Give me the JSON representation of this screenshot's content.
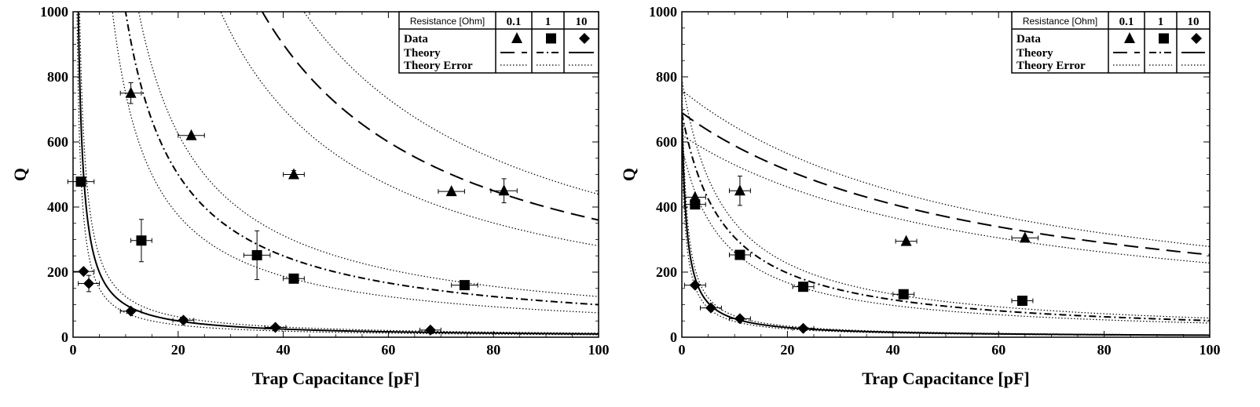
{
  "chart_data": [
    {
      "type": "scatter",
      "title": "",
      "xlabel": "Trap Capacitance [pF]",
      "ylabel": "Q",
      "xlim": [
        0,
        100
      ],
      "ylim": [
        0,
        1000
      ],
      "xticks": [
        0,
        20,
        40,
        60,
        80,
        100
      ],
      "yticks": [
        0,
        200,
        400,
        600,
        800,
        1000
      ],
      "grid": false,
      "legend": {
        "position": "top-right",
        "header": "Resistance [Ohm]",
        "columns": [
          "0.1",
          "1",
          "10"
        ],
        "rows": [
          "Data",
          "Theory",
          "Theory Error"
        ]
      },
      "series": [
        {
          "name": "0.1",
          "marker": "triangle",
          "line": "dashed",
          "theory_k": 36000,
          "theory_err": 0.22,
          "points": [
            {
              "x": 11,
              "y": 750,
              "xerr": 2,
              "yerr": 32
            },
            {
              "x": 22.5,
              "y": 620,
              "xerr": 2.5,
              "yerr": 0
            },
            {
              "x": 42,
              "y": 500,
              "xerr": 2,
              "yerr": 12
            },
            {
              "x": 72,
              "y": 448,
              "xerr": 2.5,
              "yerr": 0
            },
            {
              "x": 82,
              "y": 450,
              "xerr": 2.5,
              "yerr": 37
            }
          ]
        },
        {
          "name": "1",
          "marker": "square",
          "line": "dashdot",
          "theory_k": 10000,
          "theory_err": 0.25,
          "points": [
            {
              "x": 1.5,
              "y": 478,
              "xerr": 2.5,
              "yerr": 0
            },
            {
              "x": 13,
              "y": 297,
              "xerr": 2,
              "yerr": 65
            },
            {
              "x": 35,
              "y": 252,
              "xerr": 2.5,
              "yerr": 75
            },
            {
              "x": 42,
              "y": 180,
              "xerr": 2,
              "yerr": 0
            },
            {
              "x": 74.5,
              "y": 160,
              "xerr": 2.5,
              "yerr": 0
            }
          ]
        },
        {
          "name": "10",
          "marker": "diamond",
          "line": "solid",
          "theory_k": 1000,
          "theory_err": 0.25,
          "points": [
            {
              "x": 2,
              "y": 202,
              "xerr": 2,
              "yerr": 0
            },
            {
              "x": 3,
              "y": 165,
              "xerr": 2,
              "yerr": 25
            },
            {
              "x": 11,
              "y": 80,
              "xerr": 2,
              "yerr": 0
            },
            {
              "x": 21,
              "y": 52,
              "xerr": 2,
              "yerr": 0
            },
            {
              "x": 38.5,
              "y": 30,
              "xerr": 2,
              "yerr": 0
            },
            {
              "x": 68,
              "y": 22,
              "xerr": 2,
              "yerr": 0
            }
          ]
        }
      ]
    },
    {
      "type": "scatter",
      "title": "",
      "xlabel": "Trap Capacitance [pF]",
      "ylabel": "Q",
      "xlim": [
        0,
        100
      ],
      "ylim": [
        0,
        1000
      ],
      "xticks": [
        0,
        20,
        40,
        60,
        80,
        100
      ],
      "yticks": [
        0,
        200,
        400,
        600,
        800,
        1000
      ],
      "grid": false,
      "legend": {
        "position": "top-right",
        "header": "Resistance [Ohm]",
        "columns": [
          "0.1",
          "1",
          "10"
        ],
        "rows": [
          "Data",
          "Theory",
          "Theory Error"
        ]
      },
      "series": [
        {
          "name": "0.1",
          "marker": "triangle",
          "line": "dashed",
          "theory_q0": 690,
          "theory_c0": 58,
          "theory_err": 0.1,
          "points": [
            {
              "x": 2.5,
              "y": 430,
              "xerr": 2,
              "yerr": 0
            },
            {
              "x": 11,
              "y": 450,
              "xerr": 2,
              "yerr": 45
            },
            {
              "x": 42.5,
              "y": 295,
              "xerr": 2,
              "yerr": 0
            },
            {
              "x": 65,
              "y": 305,
              "xerr": 2.5,
              "yerr": 0
            }
          ]
        },
        {
          "name": "1",
          "marker": "square",
          "line": "dashdot",
          "theory_q0": 690,
          "theory_c0": 8,
          "theory_err": 0.15,
          "points": [
            {
              "x": 2.5,
              "y": 408,
              "xerr": 2,
              "yerr": 0
            },
            {
              "x": 11,
              "y": 253,
              "xerr": 2,
              "yerr": 0
            },
            {
              "x": 23,
              "y": 155,
              "xerr": 2,
              "yerr": 0
            },
            {
              "x": 42,
              "y": 132,
              "xerr": 2,
              "yerr": 0
            },
            {
              "x": 64.5,
              "y": 112,
              "xerr": 2,
              "yerr": 0
            }
          ]
        },
        {
          "name": "10",
          "marker": "diamond",
          "line": "solid",
          "theory_q0": 690,
          "theory_c0": 0.9,
          "theory_err": 0.15,
          "points": [
            {
              "x": 2.5,
              "y": 160,
              "xerr": 2,
              "yerr": 0
            },
            {
              "x": 5.5,
              "y": 90,
              "xerr": 2,
              "yerr": 0
            },
            {
              "x": 11,
              "y": 57,
              "xerr": 2,
              "yerr": 0
            },
            {
              "x": 23,
              "y": 27,
              "xerr": 2,
              "yerr": 0
            }
          ]
        }
      ]
    }
  ]
}
